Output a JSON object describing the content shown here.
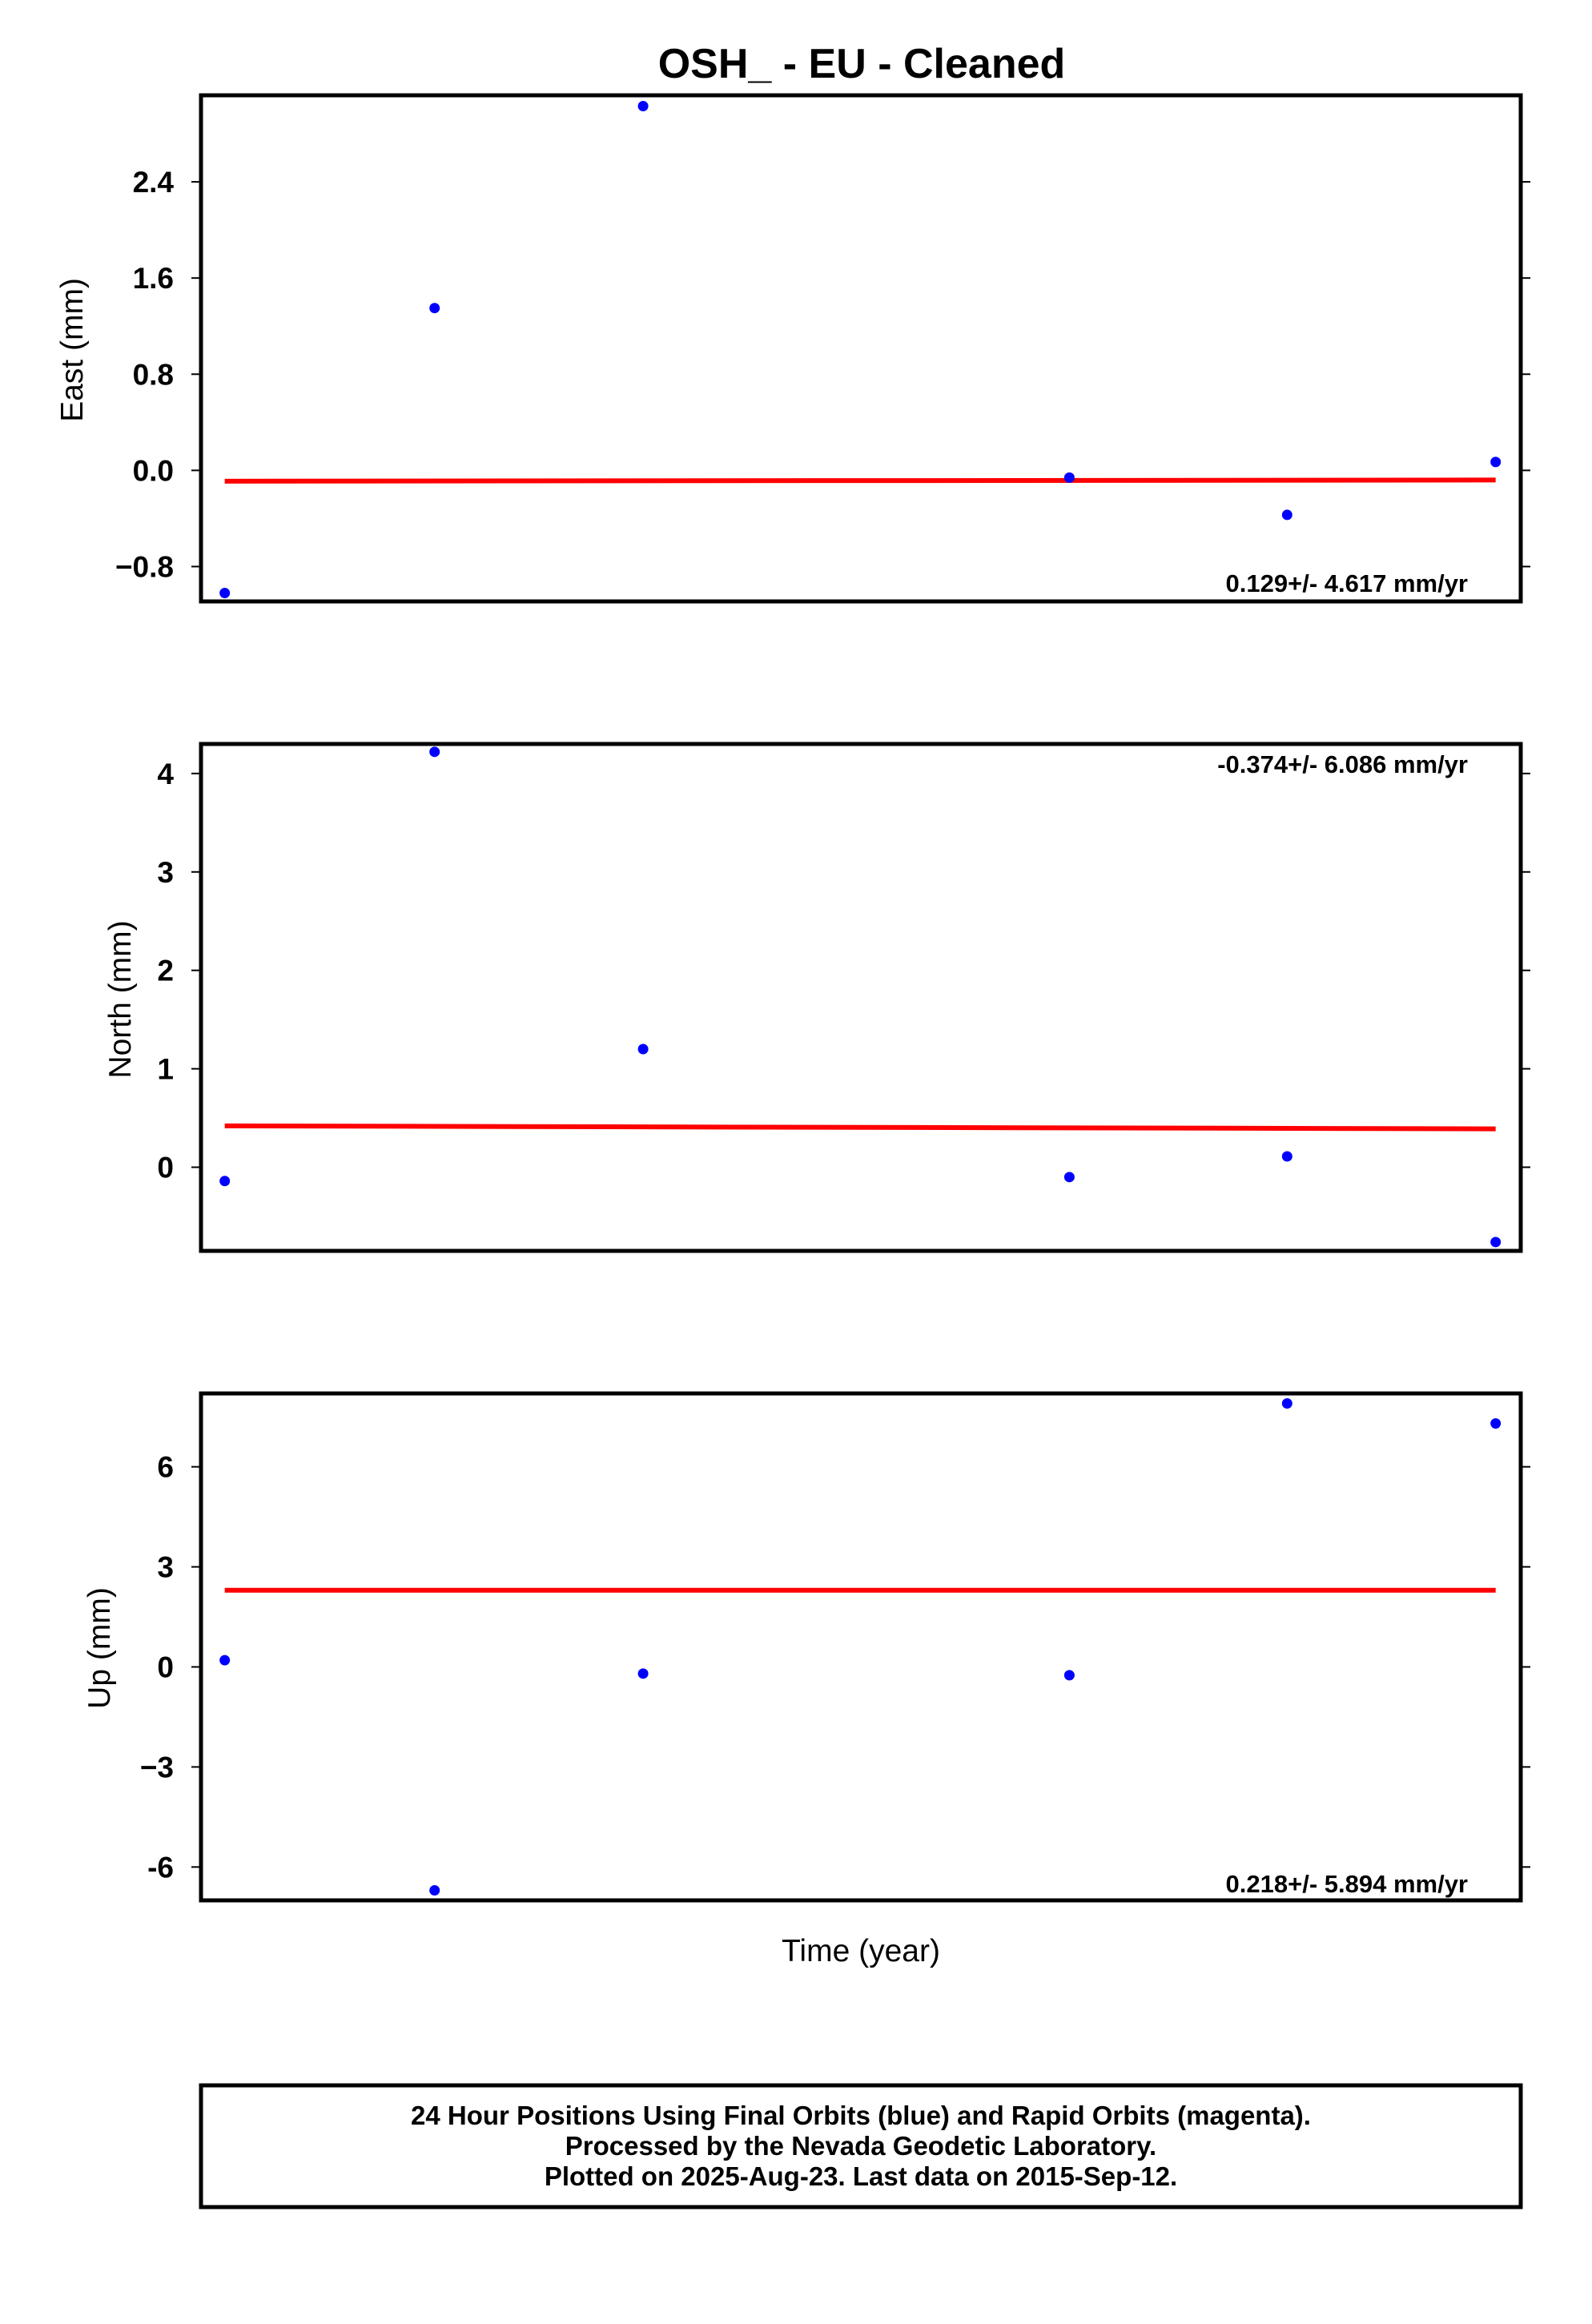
{
  "title": "OSH_  - EU - Cleaned",
  "xlabel": "Time (year)",
  "footer": {
    "line1": "24 Hour Positions Using Final Orbits (blue) and Rapid Orbits (magenta).",
    "line2": "Processed by the Nevada Geodetic Laboratory.",
    "line3": "Plotted on 2025-Aug-23. Last data on 2015-Sep-12."
  },
  "colors": {
    "points": "#0000ff",
    "trend": "#ff0000",
    "frame": "#000000"
  },
  "chart_data": [
    {
      "type": "scatter",
      "ylabel": "East (mm)",
      "rate": "0.129+/- 4.617 mm/yr",
      "ylim": [
        -1.09,
        3.12
      ],
      "yticks": [
        2.4,
        1.6,
        0.8,
        0.0,
        -0.8
      ],
      "ytick_labels": [
        "2.4",
        "1.6",
        "0.8",
        "0.0",
        "−0.8"
      ],
      "xlim": [
        0.0,
        1.0
      ],
      "x": [
        0.018,
        0.177,
        0.335,
        0.658,
        0.823,
        0.981
      ],
      "y": [
        -1.02,
        1.35,
        3.03,
        -0.06,
        -0.37,
        0.07
      ],
      "trend": {
        "x": [
          0.018,
          0.981
        ],
        "y": [
          -0.09,
          -0.08
        ]
      }
    },
    {
      "type": "scatter",
      "ylabel": "North (mm)",
      "rate": "-0.374+/- 6.086 mm/yr",
      "ylim": [
        -0.85,
        4.3
      ],
      "yticks": [
        4,
        3,
        2,
        1,
        0
      ],
      "ytick_labels": [
        "4",
        "3",
        "2",
        "1",
        "0"
      ],
      "xlim": [
        0.0,
        1.0
      ],
      "x": [
        0.018,
        0.177,
        0.335,
        0.658,
        0.823,
        0.981
      ],
      "y": [
        -0.14,
        4.22,
        1.2,
        -0.1,
        0.11,
        -0.76
      ],
      "trend": {
        "x": [
          0.018,
          0.981
        ],
        "y": [
          0.42,
          0.39
        ]
      }
    },
    {
      "type": "scatter",
      "ylabel": "Up (mm)",
      "rate": "0.218+/- 5.894 mm/yr",
      "ylim": [
        -7.0,
        8.2
      ],
      "yticks": [
        6,
        3,
        0,
        -3,
        -6
      ],
      "ytick_labels": [
        "6",
        "3",
        "0",
        "−3",
        "-6"
      ],
      "xlim": [
        0.0,
        1.0
      ],
      "x": [
        0.018,
        0.177,
        0.335,
        0.658,
        0.823,
        0.981
      ],
      "y": [
        0.2,
        -6.7,
        -0.2,
        -0.25,
        7.9,
        7.3
      ],
      "trend": {
        "x": [
          0.018,
          0.981
        ],
        "y": [
          2.3,
          2.3
        ]
      }
    }
  ]
}
